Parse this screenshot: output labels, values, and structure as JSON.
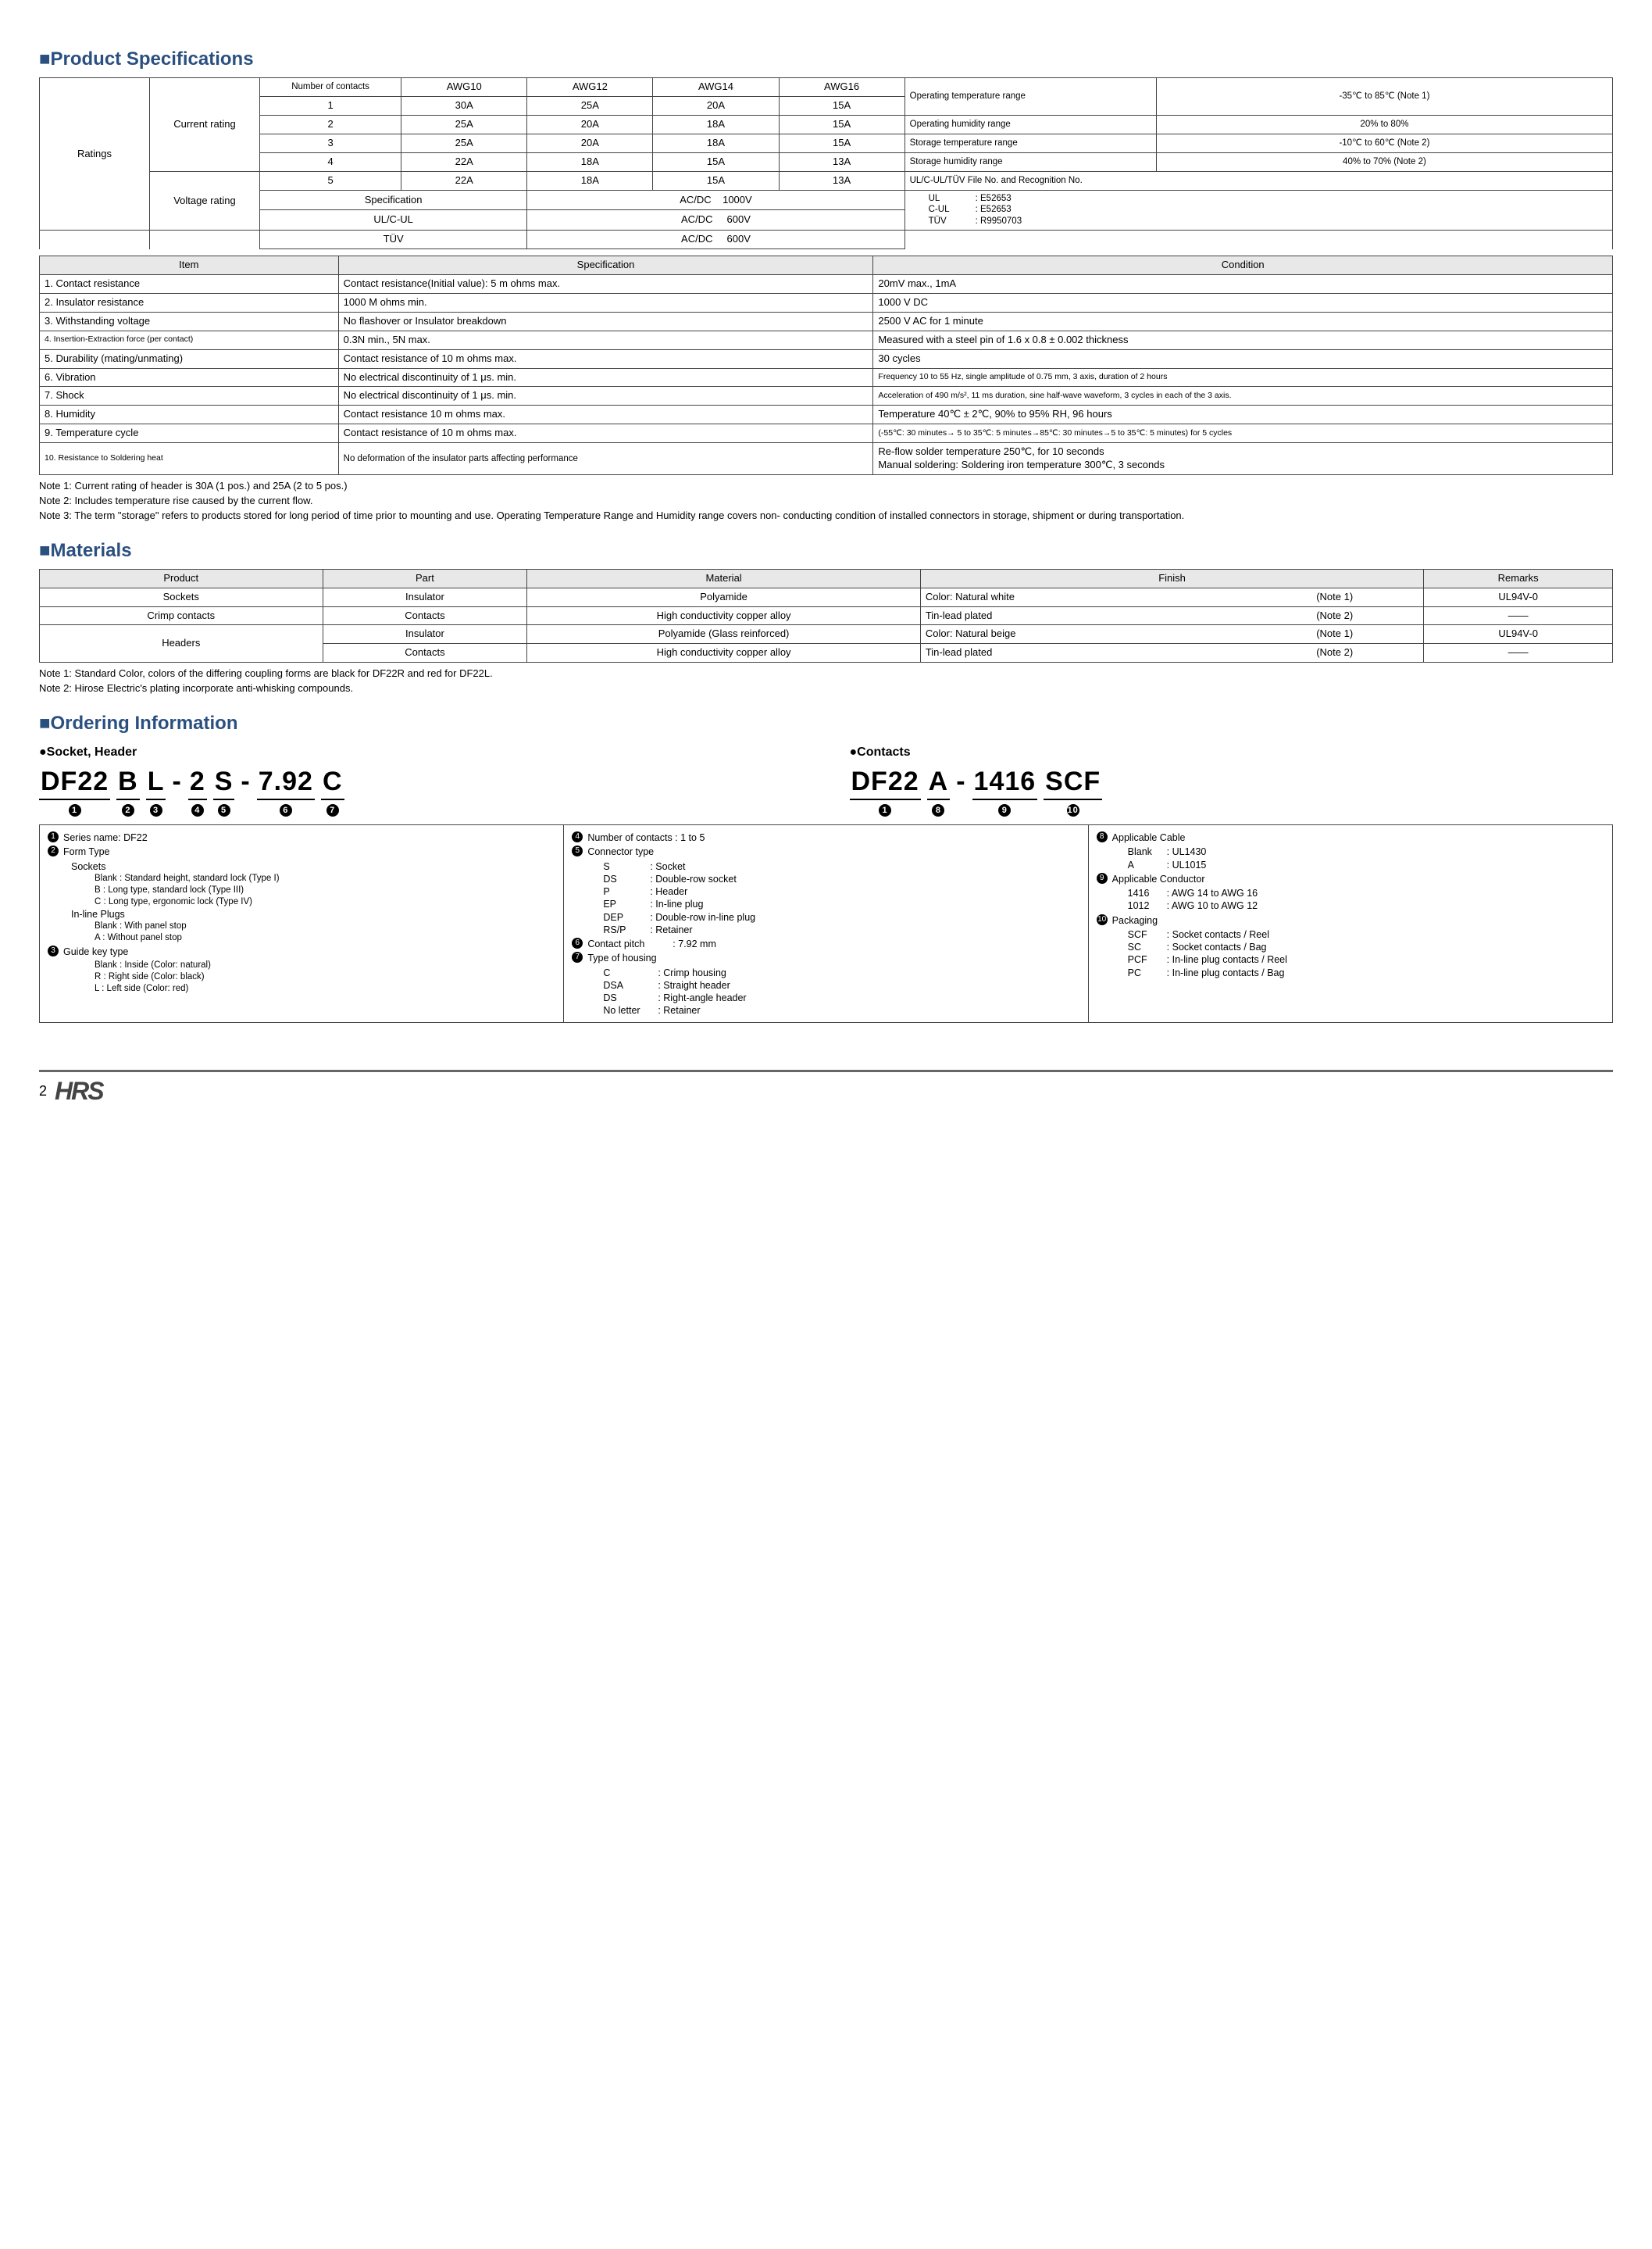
{
  "sections": {
    "spec_title": "■Product Specifications",
    "materials_title": "■Materials",
    "ordering_title": "■Ordering Information"
  },
  "ratings": {
    "row_label": "Ratings",
    "current_label": "Current rating",
    "voltage_label": "Voltage rating",
    "header": {
      "c0": "Number of contacts",
      "c1": "AWG10",
      "c2": "AWG12",
      "c3": "AWG14",
      "c4": "AWG16"
    },
    "rows": [
      {
        "n": "1",
        "a": "30A",
        "b": "25A",
        "c": "20A",
        "d": "15A"
      },
      {
        "n": "2",
        "a": "25A",
        "b": "20A",
        "c": "18A",
        "d": "15A"
      },
      {
        "n": "3",
        "a": "25A",
        "b": "20A",
        "c": "18A",
        "d": "15A"
      },
      {
        "n": "4",
        "a": "22A",
        "b": "18A",
        "c": "15A",
        "d": "13A"
      },
      {
        "n": "5",
        "a": "22A",
        "b": "18A",
        "c": "15A",
        "d": "13A"
      }
    ],
    "voltage": [
      {
        "k": "Specification",
        "v": "AC/DC    1000V"
      },
      {
        "k": "UL/C-UL",
        "v": "AC/DC     600V"
      },
      {
        "k": "TÜV",
        "v": "AC/DC     600V"
      }
    ],
    "env": [
      {
        "k": "Operating temperature range",
        "v": "-35℃ to 85℃ (Note 1)"
      },
      {
        "k": "Operating humidity range",
        "v": "20% to 80%"
      },
      {
        "k": "Storage temperature range",
        "v": "-10℃ to 60℃ (Note 2)"
      },
      {
        "k": "Storage humidity range",
        "v": "40% to 70% (Note 2)"
      }
    ],
    "cert_head": "UL/C-UL/TÜV    File No. and Recognition No.",
    "certs": [
      {
        "k": "UL",
        "v": ": E52653"
      },
      {
        "k": "C-UL",
        "v": ": E52653"
      },
      {
        "k": "TÜV",
        "v": ": R9950703"
      }
    ]
  },
  "spec_table": {
    "head": {
      "a": "Item",
      "b": "Specification",
      "c": "Condition"
    },
    "rows": [
      {
        "a": "1. Contact resistance",
        "b": "Contact resistance(Initial value): 5 m ohms max.",
        "c": "20mV max., 1mA"
      },
      {
        "a": "2. Insulator resistance",
        "b": "1000 M ohms min.",
        "c": "1000 V DC"
      },
      {
        "a": "3. Withstanding voltage",
        "b": "No flashover or Insulator breakdown",
        "c": "2500 V AC for 1 minute"
      },
      {
        "a": "4. Insertion-Extraction force (per contact)",
        "a_small": true,
        "b": "0.3N min., 5N max.",
        "c": "Measured with a steel pin of 1.6 x 0.8 ± 0.002 thickness"
      },
      {
        "a": "5. Durability (mating/unmating)",
        "b": "Contact resistance of 10 m ohms max.",
        "c": "30 cycles"
      },
      {
        "a": "6. Vibration",
        "b": "No electrical discontinuity of 1 μs. min.",
        "c": "Frequency 10 to 55 Hz, single amplitude of 0.75 mm, 3 axis, duration of 2 hours",
        "c_small": true
      },
      {
        "a": "7. Shock",
        "b": "No electrical discontinuity of 1 μs. min.",
        "c": "Acceleration of 490 m/s², 11 ms duration, sine half-wave waveform, 3 cycles in each of the 3 axis.",
        "c_small": true
      },
      {
        "a": "8. Humidity",
        "b": "Contact resistance 10 m ohms max.",
        "c": "Temperature 40℃ ± 2℃, 90% to 95% RH, 96 hours"
      },
      {
        "a": "9. Temperature cycle",
        "b": "Contact resistance of 10 m ohms max.",
        "c": "(-55℃: 30 minutes→ 5 to 35℃: 5 minutes→85℃: 30 minutes→5 to 35℃: 5 minutes) for 5 cycles",
        "c_small": true
      },
      {
        "a": "10. Resistance to Soldering heat",
        "a_small": true,
        "b": "No deformation of the insulator parts affecting performance",
        "b_small": true,
        "c": "Re-flow solder temperature 250℃, for 10 seconds\nManual soldering: Soldering iron temperature 300℃, 3 seconds"
      }
    ]
  },
  "spec_notes": [
    "Note 1: Current rating of header is 30A (1 pos.) and 25A (2 to 5 pos.)",
    "Note 2: Includes temperature rise caused by the current flow.",
    "Note 3: The term \"storage\" refers to products stored for long period of time prior to mounting and use. Operating Temperature Range and Humidity range covers non- conducting condition of installed connectors in storage, shipment or during transportation."
  ],
  "materials": {
    "head": {
      "a": "Product",
      "b": "Part",
      "c": "Material",
      "d": "Finish",
      "e": "Remarks"
    },
    "rows": [
      {
        "a": "Sockets",
        "b": "Insulator",
        "c": "Polyamide",
        "d1": "Color: Natural white",
        "d2": "(Note 1)",
        "e": "UL94V-0"
      },
      {
        "a": "Crimp contacts",
        "b": "Contacts",
        "c": "High conductivity copper alloy",
        "d1": "Tin-lead plated",
        "d2": "(Note 2)",
        "e": "——"
      },
      {
        "a": "Headers",
        "rowspan": 2,
        "b": "Insulator",
        "c": "Polyamide (Glass reinforced)",
        "d1": "Color: Natural beige",
        "d2": "(Note 1)",
        "e": "UL94V-0"
      },
      {
        "b": "Contacts",
        "c": "High conductivity copper alloy",
        "d1": "Tin-lead plated",
        "d2": "(Note 2)",
        "e": "——"
      }
    ],
    "notes": [
      "Note 1: Standard Color, colors of the differing coupling forms are black for DF22R and red for DF22L.",
      "Note 2: Hirose Electric's plating incorporate anti-whisking compounds."
    ]
  },
  "ordering": {
    "socket_label": "●Socket, Header",
    "contacts_label": "●Contacts",
    "socket_pn": [
      "DF22",
      "B",
      "L",
      "-",
      "2",
      "S",
      "-",
      "7.92",
      "C"
    ],
    "socket_nums": [
      "1",
      "2",
      "3",
      "",
      "4",
      "5",
      "",
      "6",
      "7"
    ],
    "contact_pn": [
      "DF22",
      "A",
      "-",
      "1416",
      "SCF"
    ],
    "contact_nums": [
      "1",
      "8",
      "",
      "9",
      "10"
    ],
    "col1": {
      "i1": "Series name: DF22",
      "i2": "Form Type",
      "i2_sub": [
        "Sockets",
        "Blank : Standard height, standard lock (Type I)|1",
        "B : Long type, standard lock (Type III)|1",
        "C : Long type, ergonomic lock (Type IV)|1",
        "In-line Plugs",
        "Blank : With panel stop|1",
        "A : Without panel stop|1"
      ],
      "i3": "Guide key type",
      "i3_sub": [
        "Blank : Inside (Color: natural)|1",
        "R : Right side (Color: black)|1",
        "L : Left side (Color: red)|1"
      ]
    },
    "col2": {
      "i4": "Number of contacts : 1 to 5",
      "i5": "Connector type",
      "i5_sub": [
        {
          "k": "S",
          "v": ": Socket"
        },
        {
          "k": "DS",
          "v": ": Double-row socket"
        },
        {
          "k": "P",
          "v": ": Header"
        },
        {
          "k": "EP",
          "v": ": In-line plug"
        },
        {
          "k": "DEP",
          "v": ": Double-row in-line plug"
        },
        {
          "k": "RS/P",
          "v": ": Retainer"
        }
      ],
      "i6": "Contact pitch",
      "i6_v": ": 7.92 mm",
      "i7": "Type of housing",
      "i7_sub": [
        {
          "k": "C",
          "v": ": Crimp housing"
        },
        {
          "k": "DSA",
          "v": ": Straight header"
        },
        {
          "k": "DS",
          "v": ": Right-angle header"
        },
        {
          "k": "No letter",
          "v": ": Retainer"
        }
      ]
    },
    "col3": {
      "i8": "Applicable Cable",
      "i8_sub": [
        {
          "k": "Blank",
          "v": ": UL1430"
        },
        {
          "k": "A",
          "v": ": UL1015"
        }
      ],
      "i9": "Applicable Conductor",
      "i9_sub": [
        {
          "k": "1416",
          "v": ": AWG 14 to AWG 16"
        },
        {
          "k": "1012",
          "v": ": AWG 10 to AWG 12"
        }
      ],
      "i10": "Packaging",
      "i10_sub": [
        {
          "k": "SCF",
          "v": ": Socket contacts / Reel"
        },
        {
          "k": "SC",
          "v": ": Socket contacts / Bag"
        },
        {
          "k": "PCF",
          "v": ": In-line plug contacts / Reel"
        },
        {
          "k": "PC",
          "v": ": In-line plug contacts / Bag"
        }
      ]
    }
  },
  "page": "2",
  "logo": "HRS"
}
